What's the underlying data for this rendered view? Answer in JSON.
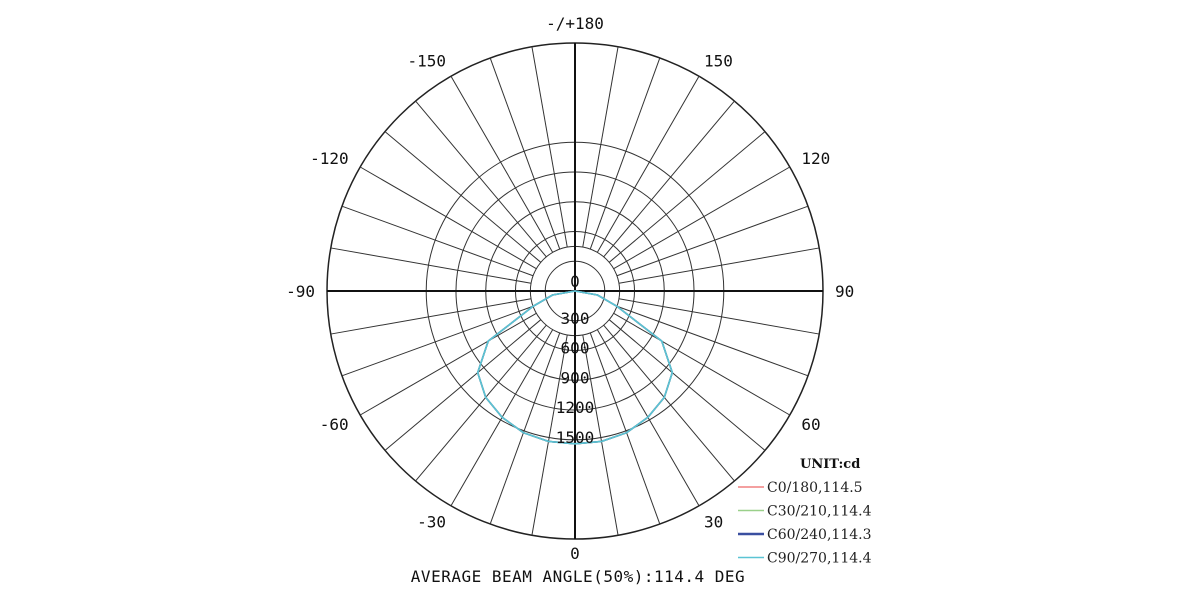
{
  "chart_data": {
    "type": "polar",
    "unit_label": "UNIT:cd",
    "angle_labels": [
      {
        "angle": 180,
        "label": "-/+180"
      },
      {
        "angle": 150,
        "label": "150"
      },
      {
        "angle": -150,
        "label": "-150"
      },
      {
        "angle": 120,
        "label": "120"
      },
      {
        "angle": -120,
        "label": "-120"
      },
      {
        "angle": 90,
        "label": "90"
      },
      {
        "angle": -90,
        "label": "-90"
      },
      {
        "angle": 60,
        "label": "60"
      },
      {
        "angle": -60,
        "label": "-60"
      },
      {
        "angle": 30,
        "label": "30"
      },
      {
        "angle": -30,
        "label": "-30"
      },
      {
        "angle": 0,
        "label": "0"
      }
    ],
    "radial_ticks": [
      "0",
      "300",
      "600",
      "900",
      "1200",
      "1500"
    ],
    "radial_values": [
      0,
      300,
      600,
      900,
      1200,
      1500
    ],
    "r_max": 2500,
    "inner_ring": 450,
    "angle_step": 10,
    "series": [
      {
        "name": "C0/180,114.5",
        "color": "#f08080",
        "angles": [
          -90,
          -80,
          -70,
          -60,
          -50,
          -40,
          -30,
          -20,
          -10,
          0,
          10,
          20,
          30,
          40,
          50,
          60,
          70,
          80,
          90
        ],
        "values": [
          0,
          230,
          450,
          1010,
          1280,
          1400,
          1470,
          1520,
          1540,
          1540,
          1540,
          1520,
          1470,
          1400,
          1280,
          1010,
          450,
          230,
          0
        ]
      },
      {
        "name": "C30/210,114.4",
        "color": "#9ad08a",
        "angles": [
          -90,
          -80,
          -70,
          -60,
          -50,
          -40,
          -30,
          -20,
          -10,
          0,
          10,
          20,
          30,
          40,
          50,
          60,
          70,
          80,
          90
        ],
        "values": [
          0,
          230,
          450,
          1010,
          1280,
          1400,
          1470,
          1520,
          1540,
          1540,
          1540,
          1520,
          1470,
          1400,
          1280,
          1010,
          450,
          230,
          0
        ]
      },
      {
        "name": "C60/240,114.3",
        "color": "#3a4fa0",
        "angles": [
          -90,
          -80,
          -70,
          -60,
          -50,
          -40,
          -30,
          -20,
          -10,
          0,
          10,
          20,
          30,
          40,
          50,
          60,
          70,
          80,
          90
        ],
        "values": [
          0,
          230,
          450,
          1010,
          1280,
          1400,
          1470,
          1520,
          1540,
          1540,
          1540,
          1520,
          1470,
          1400,
          1280,
          1010,
          450,
          230,
          0
        ]
      },
      {
        "name": "C90/270,114.4",
        "color": "#5bc4d4",
        "angles": [
          -90,
          -80,
          -70,
          -60,
          -50,
          -40,
          -30,
          -20,
          -10,
          0,
          10,
          20,
          30,
          40,
          50,
          60,
          70,
          80,
          90
        ],
        "values": [
          0,
          230,
          450,
          1010,
          1280,
          1400,
          1470,
          1520,
          1540,
          1540,
          1540,
          1520,
          1470,
          1400,
          1280,
          1010,
          450,
          230,
          0
        ]
      }
    ],
    "footer": "AVERAGE BEAM ANGLE(50%):114.4 DEG"
  }
}
